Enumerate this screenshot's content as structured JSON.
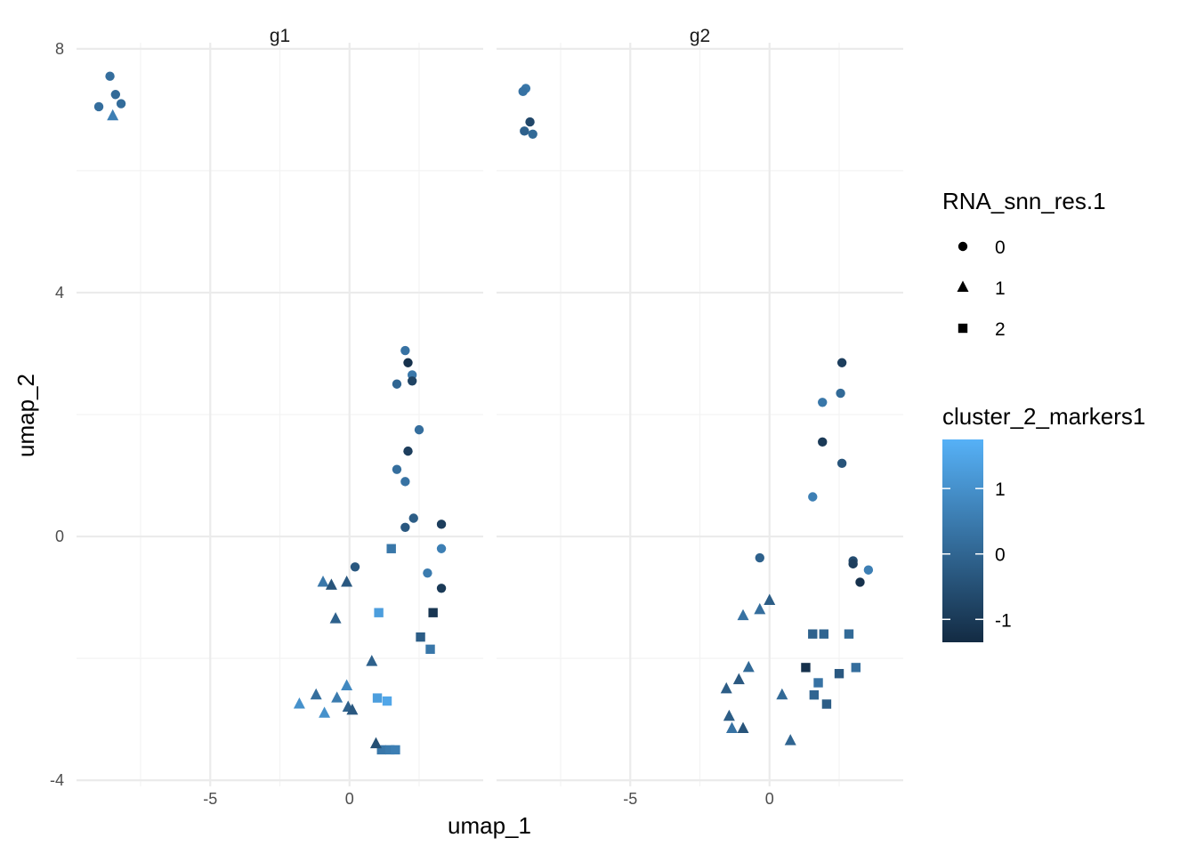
{
  "chart_data": {
    "type": "scatter",
    "xlabel": "umap_1",
    "ylabel": "umap_2",
    "xlim": [
      -9.8,
      4.8
    ],
    "ylim": [
      -4.1,
      8.1
    ],
    "x_ticks": [
      -5,
      0
    ],
    "x_tick_labels": [
      "-5",
      "0"
    ],
    "y_ticks": [
      -4,
      0,
      4,
      8
    ],
    "y_tick_labels": [
      "-4",
      "0",
      "4",
      "8"
    ],
    "grid": true,
    "facets": [
      {
        "label": "g1",
        "points": [
          {
            "x": -8.6,
            "y": 7.55,
            "shape": "0",
            "color": 0.2
          },
          {
            "x": -8.4,
            "y": 7.25,
            "shape": "0",
            "color": 0.1
          },
          {
            "x": -8.2,
            "y": 7.1,
            "shape": "0",
            "color": 0.15
          },
          {
            "x": -9.0,
            "y": 7.05,
            "shape": "0",
            "color": 0.2
          },
          {
            "x": -8.5,
            "y": 6.9,
            "shape": "1",
            "color": 0.6
          },
          {
            "x": 2.0,
            "y": 3.05,
            "shape": "0",
            "color": 0.3
          },
          {
            "x": 2.1,
            "y": 2.85,
            "shape": "0",
            "color": -1.2
          },
          {
            "x": 2.25,
            "y": 2.65,
            "shape": "0",
            "color": 0.4
          },
          {
            "x": 2.25,
            "y": 2.55,
            "shape": "0",
            "color": -0.8
          },
          {
            "x": 1.7,
            "y": 2.5,
            "shape": "0",
            "color": 0.0
          },
          {
            "x": 2.5,
            "y": 1.75,
            "shape": "0",
            "color": 0.2
          },
          {
            "x": 2.1,
            "y": 1.4,
            "shape": "0",
            "color": -0.9
          },
          {
            "x": 1.7,
            "y": 1.1,
            "shape": "0",
            "color": 0.2
          },
          {
            "x": 2.0,
            "y": 0.9,
            "shape": "0",
            "color": 0.3
          },
          {
            "x": 2.3,
            "y": 0.3,
            "shape": "0",
            "color": -0.2
          },
          {
            "x": 2.0,
            "y": 0.15,
            "shape": "0",
            "color": -0.3
          },
          {
            "x": 3.3,
            "y": 0.2,
            "shape": "0",
            "color": -0.9
          },
          {
            "x": 3.3,
            "y": -0.2,
            "shape": "0",
            "color": 0.6
          },
          {
            "x": 0.2,
            "y": -0.5,
            "shape": "0",
            "color": -0.3
          },
          {
            "x": 2.8,
            "y": -0.6,
            "shape": "0",
            "color": 0.5
          },
          {
            "x": 3.3,
            "y": -0.85,
            "shape": "0",
            "color": -1.0
          },
          {
            "x": 1.5,
            "y": -0.2,
            "shape": "2",
            "color": 0.4
          },
          {
            "x": 1.05,
            "y": -1.25,
            "shape": "2",
            "color": 1.3
          },
          {
            "x": 3.0,
            "y": -1.25,
            "shape": "2",
            "color": -1.1
          },
          {
            "x": 2.55,
            "y": -1.65,
            "shape": "2",
            "color": -0.2
          },
          {
            "x": 2.9,
            "y": -1.85,
            "shape": "2",
            "color": 0.4
          },
          {
            "x": 1.0,
            "y": -2.65,
            "shape": "2",
            "color": 1.3
          },
          {
            "x": 1.35,
            "y": -2.7,
            "shape": "2",
            "color": 1.5
          },
          {
            "x": 1.15,
            "y": -3.5,
            "shape": "2",
            "color": 0.4
          },
          {
            "x": 1.45,
            "y": -3.5,
            "shape": "2",
            "color": 0.5
          },
          {
            "x": 1.65,
            "y": -3.5,
            "shape": "2",
            "color": 0.6
          },
          {
            "x": -0.95,
            "y": -0.75,
            "shape": "1",
            "color": 0.4
          },
          {
            "x": -0.65,
            "y": -0.8,
            "shape": "1",
            "color": -0.4
          },
          {
            "x": -0.1,
            "y": -0.75,
            "shape": "1",
            "color": -0.3
          },
          {
            "x": -0.5,
            "y": -1.35,
            "shape": "1",
            "color": -0.1
          },
          {
            "x": 0.8,
            "y": -2.05,
            "shape": "1",
            "color": -0.1
          },
          {
            "x": -0.1,
            "y": -2.45,
            "shape": "1",
            "color": 0.8
          },
          {
            "x": -1.2,
            "y": -2.6,
            "shape": "1",
            "color": 0.2
          },
          {
            "x": -0.45,
            "y": -2.65,
            "shape": "1",
            "color": 0.5
          },
          {
            "x": -1.8,
            "y": -2.75,
            "shape": "1",
            "color": 1.0
          },
          {
            "x": -0.05,
            "y": -2.8,
            "shape": "1",
            "color": -0.1
          },
          {
            "x": 0.1,
            "y": -2.85,
            "shape": "1",
            "color": -0.3
          },
          {
            "x": -0.9,
            "y": -2.9,
            "shape": "1",
            "color": 1.0
          },
          {
            "x": 0.95,
            "y": -3.4,
            "shape": "1",
            "color": -0.5
          }
        ]
      },
      {
        "label": "g2",
        "points": [
          {
            "x": -8.75,
            "y": 7.35,
            "shape": "0",
            "color": 0.4
          },
          {
            "x": -8.85,
            "y": 7.3,
            "shape": "0",
            "color": 0.3
          },
          {
            "x": -8.6,
            "y": 6.8,
            "shape": "0",
            "color": -0.7
          },
          {
            "x": -8.8,
            "y": 6.65,
            "shape": "0",
            "color": -0.1
          },
          {
            "x": -8.5,
            "y": 6.6,
            "shape": "0",
            "color": 0.1
          },
          {
            "x": 2.6,
            "y": 2.85,
            "shape": "0",
            "color": -0.9
          },
          {
            "x": 2.55,
            "y": 2.35,
            "shape": "0",
            "color": 0.1
          },
          {
            "x": 1.9,
            "y": 2.2,
            "shape": "0",
            "color": 0.4
          },
          {
            "x": 1.9,
            "y": 1.55,
            "shape": "0",
            "color": -1.0
          },
          {
            "x": 2.6,
            "y": 1.2,
            "shape": "0",
            "color": -0.4
          },
          {
            "x": 1.55,
            "y": 0.65,
            "shape": "0",
            "color": 0.6
          },
          {
            "x": -0.35,
            "y": -0.35,
            "shape": "0",
            "color": -0.1
          },
          {
            "x": 3.0,
            "y": -0.4,
            "shape": "0",
            "color": -0.6
          },
          {
            "x": 3.0,
            "y": -0.45,
            "shape": "0",
            "color": -0.9
          },
          {
            "x": 3.55,
            "y": -0.55,
            "shape": "0",
            "color": 0.6
          },
          {
            "x": 3.25,
            "y": -0.75,
            "shape": "0",
            "color": -1.2
          },
          {
            "x": 1.55,
            "y": -1.6,
            "shape": "2",
            "color": -0.1
          },
          {
            "x": 1.95,
            "y": -1.6,
            "shape": "2",
            "color": 0.0
          },
          {
            "x": 2.85,
            "y": -1.6,
            "shape": "2",
            "color": 0.1
          },
          {
            "x": 1.3,
            "y": -2.15,
            "shape": "2",
            "color": -1.2
          },
          {
            "x": 3.1,
            "y": -2.15,
            "shape": "2",
            "color": 0.2
          },
          {
            "x": 2.5,
            "y": -2.25,
            "shape": "2",
            "color": -0.3
          },
          {
            "x": 1.75,
            "y": -2.4,
            "shape": "2",
            "color": 0.3
          },
          {
            "x": 1.6,
            "y": -2.6,
            "shape": "2",
            "color": 0.0
          },
          {
            "x": 2.05,
            "y": -2.75,
            "shape": "2",
            "color": -0.2
          },
          {
            "x": 0.0,
            "y": -1.05,
            "shape": "1",
            "color": -0.2
          },
          {
            "x": -0.35,
            "y": -1.2,
            "shape": "1",
            "color": 0.2
          },
          {
            "x": -0.95,
            "y": -1.3,
            "shape": "1",
            "color": 0.3
          },
          {
            "x": -0.75,
            "y": -2.15,
            "shape": "1",
            "color": 0.1
          },
          {
            "x": -1.1,
            "y": -2.35,
            "shape": "1",
            "color": -0.3
          },
          {
            "x": -1.55,
            "y": -2.5,
            "shape": "1",
            "color": -0.2
          },
          {
            "x": 0.45,
            "y": -2.6,
            "shape": "1",
            "color": 0.1
          },
          {
            "x": -1.45,
            "y": -2.95,
            "shape": "1",
            "color": -0.2
          },
          {
            "x": -1.35,
            "y": -3.15,
            "shape": "1",
            "color": 0.3
          },
          {
            "x": -0.95,
            "y": -3.15,
            "shape": "1",
            "color": -0.4
          },
          {
            "x": 0.75,
            "y": -3.35,
            "shape": "1",
            "color": 0.0
          }
        ]
      }
    ],
    "legend_shape": {
      "title": "RNA_snn_res.1",
      "entries": [
        "0",
        "1",
        "2"
      ],
      "shapes": [
        "circle",
        "triangle",
        "square"
      ]
    },
    "legend_color": {
      "title": "cluster_2_markers1",
      "range": [
        -1.35,
        1.75
      ],
      "ticks": [
        1,
        0,
        -1
      ],
      "tick_labels": [
        "1",
        "0",
        "-1"
      ],
      "color_low": "#132b43",
      "color_high": "#56b1f7"
    },
    "legend_placement": "right"
  }
}
